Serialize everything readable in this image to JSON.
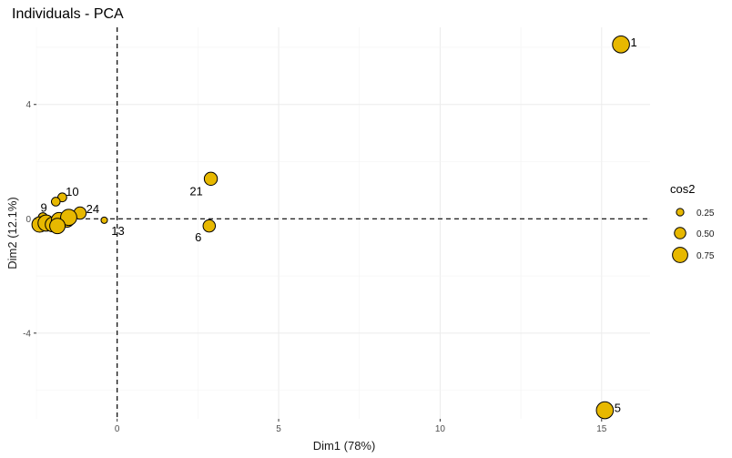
{
  "chart_data": {
    "type": "scatter",
    "title": "Individuals - PCA",
    "xlabel": "Dim1 (78%)",
    "ylabel": "Dim2 (12.1%)",
    "xlim": [
      -2.5,
      16.5
    ],
    "ylim": [
      -7.0,
      6.7
    ],
    "x_ticks": [
      0,
      5,
      10,
      15
    ],
    "y_ticks": [
      -4,
      0,
      4
    ],
    "x_tick_labels": [
      "0",
      "5",
      "10",
      "15"
    ],
    "y_tick_labels": [
      "-4",
      "0",
      "4"
    ],
    "grid": true,
    "reference_lines": {
      "x": 0,
      "y": 0,
      "style": "dashed"
    },
    "point_color": "#E7B800",
    "point_stroke": "#000000",
    "legend": {
      "title": "cos2",
      "position": "right",
      "values": [
        0.25,
        0.5,
        0.75
      ],
      "labels": [
        "0.25",
        "0.50",
        "0.75"
      ]
    },
    "points": [
      {
        "label": "1",
        "x": 15.6,
        "y": 6.1,
        "cos2": 0.8,
        "show_label": true
      },
      {
        "label": "5",
        "x": 15.1,
        "y": -6.7,
        "cos2": 0.8,
        "show_label": true
      },
      {
        "label": "21",
        "x": 2.9,
        "y": 1.4,
        "cos2": 0.55,
        "show_label": true
      },
      {
        "label": "6",
        "x": 2.85,
        "y": -0.25,
        "cos2": 0.5,
        "show_label": true
      },
      {
        "label": "10",
        "x": -1.7,
        "y": 0.75,
        "cos2": 0.28,
        "show_label": true
      },
      {
        "label": "",
        "x": -1.9,
        "y": 0.6,
        "cos2": 0.27,
        "show_label": false
      },
      {
        "label": "9",
        "x": -2.3,
        "y": 0.05,
        "cos2": 0.3,
        "show_label": true
      },
      {
        "label": "24",
        "x": -1.15,
        "y": 0.2,
        "cos2": 0.5,
        "show_label": true
      },
      {
        "label": "13",
        "x": -0.4,
        "y": -0.05,
        "cos2": 0.12,
        "show_label": true
      },
      {
        "label": "",
        "x": -2.4,
        "y": -0.2,
        "cos2": 0.7,
        "show_label": false
      },
      {
        "label": "",
        "x": -2.2,
        "y": -0.15,
        "cos2": 0.75,
        "show_label": false
      },
      {
        "label": "",
        "x": -2.0,
        "y": -0.2,
        "cos2": 0.65,
        "show_label": false
      },
      {
        "label": "",
        "x": -1.8,
        "y": -0.05,
        "cos2": 0.7,
        "show_label": false
      },
      {
        "label": "",
        "x": -1.55,
        "y": -0.05,
        "cos2": 0.6,
        "show_label": false
      },
      {
        "label": "",
        "x": -1.5,
        "y": 0.05,
        "cos2": 0.75,
        "show_label": false
      },
      {
        "label": "",
        "x": -1.85,
        "y": -0.25,
        "cos2": 0.7,
        "show_label": false
      }
    ]
  }
}
